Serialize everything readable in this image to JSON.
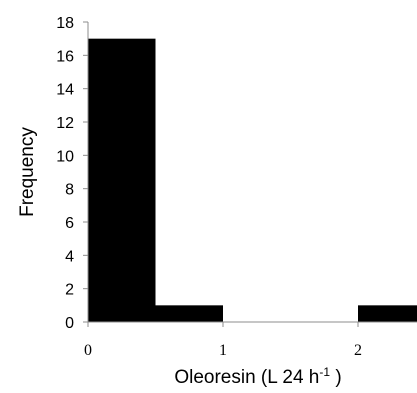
{
  "chart_data": {
    "type": "bar",
    "bins": [
      {
        "x0": 0.0,
        "x1": 0.5,
        "count": 17
      },
      {
        "x0": 0.5,
        "x1": 1.0,
        "count": 1
      },
      {
        "x0": 1.0,
        "x1": 1.5,
        "count": 0
      },
      {
        "x0": 1.5,
        "x1": 2.0,
        "count": 0
      },
      {
        "x0": 2.0,
        "x1": 2.5,
        "count": 1
      }
    ],
    "x_ticks": [
      "0",
      "1",
      "2"
    ],
    "y_ticks": [
      "0",
      "2",
      "4",
      "6",
      "8",
      "10",
      "12",
      "14",
      "16",
      "18"
    ],
    "ylim": [
      0,
      18
    ],
    "xlim": [
      0,
      2.5
    ],
    "xlabel": {
      "main": "Oleoresin (L 24 h",
      "sup": "-1",
      "tail": " )"
    },
    "ylabel": "Frequency",
    "bar_color": "#000000",
    "grid": false,
    "legend": "none"
  }
}
